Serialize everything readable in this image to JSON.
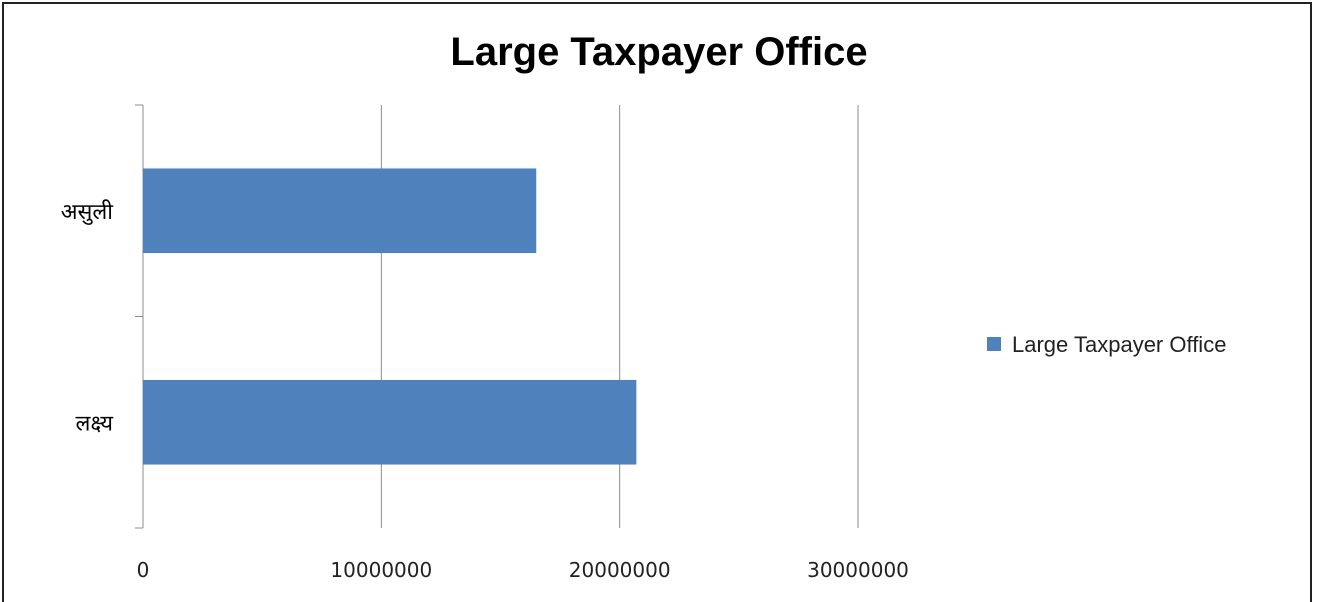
{
  "chart_data": {
    "type": "bar",
    "orientation": "horizontal",
    "title": "Large Taxpayer Office",
    "categories": [
      "असुली",
      "लक्ष्य"
    ],
    "series": [
      {
        "name": "Large Taxpayer Office",
        "values": [
          16500000,
          20700000
        ],
        "color": "#4f81bd"
      }
    ],
    "xlim": [
      0,
      30000000
    ],
    "xticks": [
      0,
      10000000,
      20000000,
      30000000
    ],
    "xtick_labels": [
      "0",
      "10000000",
      "20000000",
      "30000000"
    ],
    "grid": "vertical",
    "legend_position": "right"
  }
}
